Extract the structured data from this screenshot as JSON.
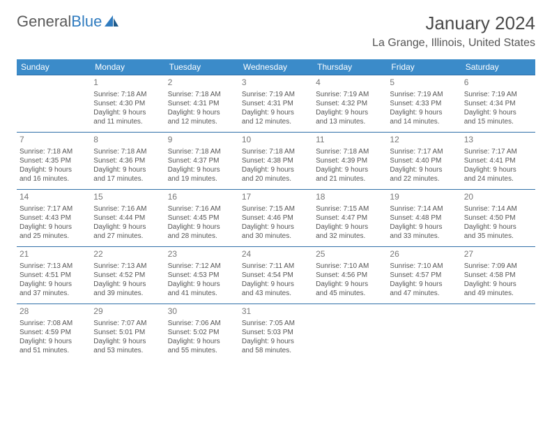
{
  "logo": {
    "word1": "General",
    "word2": "Blue"
  },
  "title": "January 2024",
  "location": "La Grange, Illinois, United States",
  "day_headers": [
    "Sunday",
    "Monday",
    "Tuesday",
    "Wednesday",
    "Thursday",
    "Friday",
    "Saturday"
  ],
  "colors": {
    "header_bg": "#3b8bc9",
    "header_text": "#ffffff",
    "row_border": "#2f6fa8",
    "body_text": "#555555",
    "daynum_text": "#777777",
    "logo_gray": "#5a5a5a",
    "logo_blue": "#2f7bbf"
  },
  "weeks": [
    [
      null,
      {
        "n": "1",
        "sr": "Sunrise: 7:18 AM",
        "ss": "Sunset: 4:30 PM",
        "d1": "Daylight: 9 hours",
        "d2": "and 11 minutes."
      },
      {
        "n": "2",
        "sr": "Sunrise: 7:18 AM",
        "ss": "Sunset: 4:31 PM",
        "d1": "Daylight: 9 hours",
        "d2": "and 12 minutes."
      },
      {
        "n": "3",
        "sr": "Sunrise: 7:19 AM",
        "ss": "Sunset: 4:31 PM",
        "d1": "Daylight: 9 hours",
        "d2": "and 12 minutes."
      },
      {
        "n": "4",
        "sr": "Sunrise: 7:19 AM",
        "ss": "Sunset: 4:32 PM",
        "d1": "Daylight: 9 hours",
        "d2": "and 13 minutes."
      },
      {
        "n": "5",
        "sr": "Sunrise: 7:19 AM",
        "ss": "Sunset: 4:33 PM",
        "d1": "Daylight: 9 hours",
        "d2": "and 14 minutes."
      },
      {
        "n": "6",
        "sr": "Sunrise: 7:19 AM",
        "ss": "Sunset: 4:34 PM",
        "d1": "Daylight: 9 hours",
        "d2": "and 15 minutes."
      }
    ],
    [
      {
        "n": "7",
        "sr": "Sunrise: 7:18 AM",
        "ss": "Sunset: 4:35 PM",
        "d1": "Daylight: 9 hours",
        "d2": "and 16 minutes."
      },
      {
        "n": "8",
        "sr": "Sunrise: 7:18 AM",
        "ss": "Sunset: 4:36 PM",
        "d1": "Daylight: 9 hours",
        "d2": "and 17 minutes."
      },
      {
        "n": "9",
        "sr": "Sunrise: 7:18 AM",
        "ss": "Sunset: 4:37 PM",
        "d1": "Daylight: 9 hours",
        "d2": "and 19 minutes."
      },
      {
        "n": "10",
        "sr": "Sunrise: 7:18 AM",
        "ss": "Sunset: 4:38 PM",
        "d1": "Daylight: 9 hours",
        "d2": "and 20 minutes."
      },
      {
        "n": "11",
        "sr": "Sunrise: 7:18 AM",
        "ss": "Sunset: 4:39 PM",
        "d1": "Daylight: 9 hours",
        "d2": "and 21 minutes."
      },
      {
        "n": "12",
        "sr": "Sunrise: 7:17 AM",
        "ss": "Sunset: 4:40 PM",
        "d1": "Daylight: 9 hours",
        "d2": "and 22 minutes."
      },
      {
        "n": "13",
        "sr": "Sunrise: 7:17 AM",
        "ss": "Sunset: 4:41 PM",
        "d1": "Daylight: 9 hours",
        "d2": "and 24 minutes."
      }
    ],
    [
      {
        "n": "14",
        "sr": "Sunrise: 7:17 AM",
        "ss": "Sunset: 4:43 PM",
        "d1": "Daylight: 9 hours",
        "d2": "and 25 minutes."
      },
      {
        "n": "15",
        "sr": "Sunrise: 7:16 AM",
        "ss": "Sunset: 4:44 PM",
        "d1": "Daylight: 9 hours",
        "d2": "and 27 minutes."
      },
      {
        "n": "16",
        "sr": "Sunrise: 7:16 AM",
        "ss": "Sunset: 4:45 PM",
        "d1": "Daylight: 9 hours",
        "d2": "and 28 minutes."
      },
      {
        "n": "17",
        "sr": "Sunrise: 7:15 AM",
        "ss": "Sunset: 4:46 PM",
        "d1": "Daylight: 9 hours",
        "d2": "and 30 minutes."
      },
      {
        "n": "18",
        "sr": "Sunrise: 7:15 AM",
        "ss": "Sunset: 4:47 PM",
        "d1": "Daylight: 9 hours",
        "d2": "and 32 minutes."
      },
      {
        "n": "19",
        "sr": "Sunrise: 7:14 AM",
        "ss": "Sunset: 4:48 PM",
        "d1": "Daylight: 9 hours",
        "d2": "and 33 minutes."
      },
      {
        "n": "20",
        "sr": "Sunrise: 7:14 AM",
        "ss": "Sunset: 4:50 PM",
        "d1": "Daylight: 9 hours",
        "d2": "and 35 minutes."
      }
    ],
    [
      {
        "n": "21",
        "sr": "Sunrise: 7:13 AM",
        "ss": "Sunset: 4:51 PM",
        "d1": "Daylight: 9 hours",
        "d2": "and 37 minutes."
      },
      {
        "n": "22",
        "sr": "Sunrise: 7:13 AM",
        "ss": "Sunset: 4:52 PM",
        "d1": "Daylight: 9 hours",
        "d2": "and 39 minutes."
      },
      {
        "n": "23",
        "sr": "Sunrise: 7:12 AM",
        "ss": "Sunset: 4:53 PM",
        "d1": "Daylight: 9 hours",
        "d2": "and 41 minutes."
      },
      {
        "n": "24",
        "sr": "Sunrise: 7:11 AM",
        "ss": "Sunset: 4:54 PM",
        "d1": "Daylight: 9 hours",
        "d2": "and 43 minutes."
      },
      {
        "n": "25",
        "sr": "Sunrise: 7:10 AM",
        "ss": "Sunset: 4:56 PM",
        "d1": "Daylight: 9 hours",
        "d2": "and 45 minutes."
      },
      {
        "n": "26",
        "sr": "Sunrise: 7:10 AM",
        "ss": "Sunset: 4:57 PM",
        "d1": "Daylight: 9 hours",
        "d2": "and 47 minutes."
      },
      {
        "n": "27",
        "sr": "Sunrise: 7:09 AM",
        "ss": "Sunset: 4:58 PM",
        "d1": "Daylight: 9 hours",
        "d2": "and 49 minutes."
      }
    ],
    [
      {
        "n": "28",
        "sr": "Sunrise: 7:08 AM",
        "ss": "Sunset: 4:59 PM",
        "d1": "Daylight: 9 hours",
        "d2": "and 51 minutes."
      },
      {
        "n": "29",
        "sr": "Sunrise: 7:07 AM",
        "ss": "Sunset: 5:01 PM",
        "d1": "Daylight: 9 hours",
        "d2": "and 53 minutes."
      },
      {
        "n": "30",
        "sr": "Sunrise: 7:06 AM",
        "ss": "Sunset: 5:02 PM",
        "d1": "Daylight: 9 hours",
        "d2": "and 55 minutes."
      },
      {
        "n": "31",
        "sr": "Sunrise: 7:05 AM",
        "ss": "Sunset: 5:03 PM",
        "d1": "Daylight: 9 hours",
        "d2": "and 58 minutes."
      },
      null,
      null,
      null
    ]
  ]
}
